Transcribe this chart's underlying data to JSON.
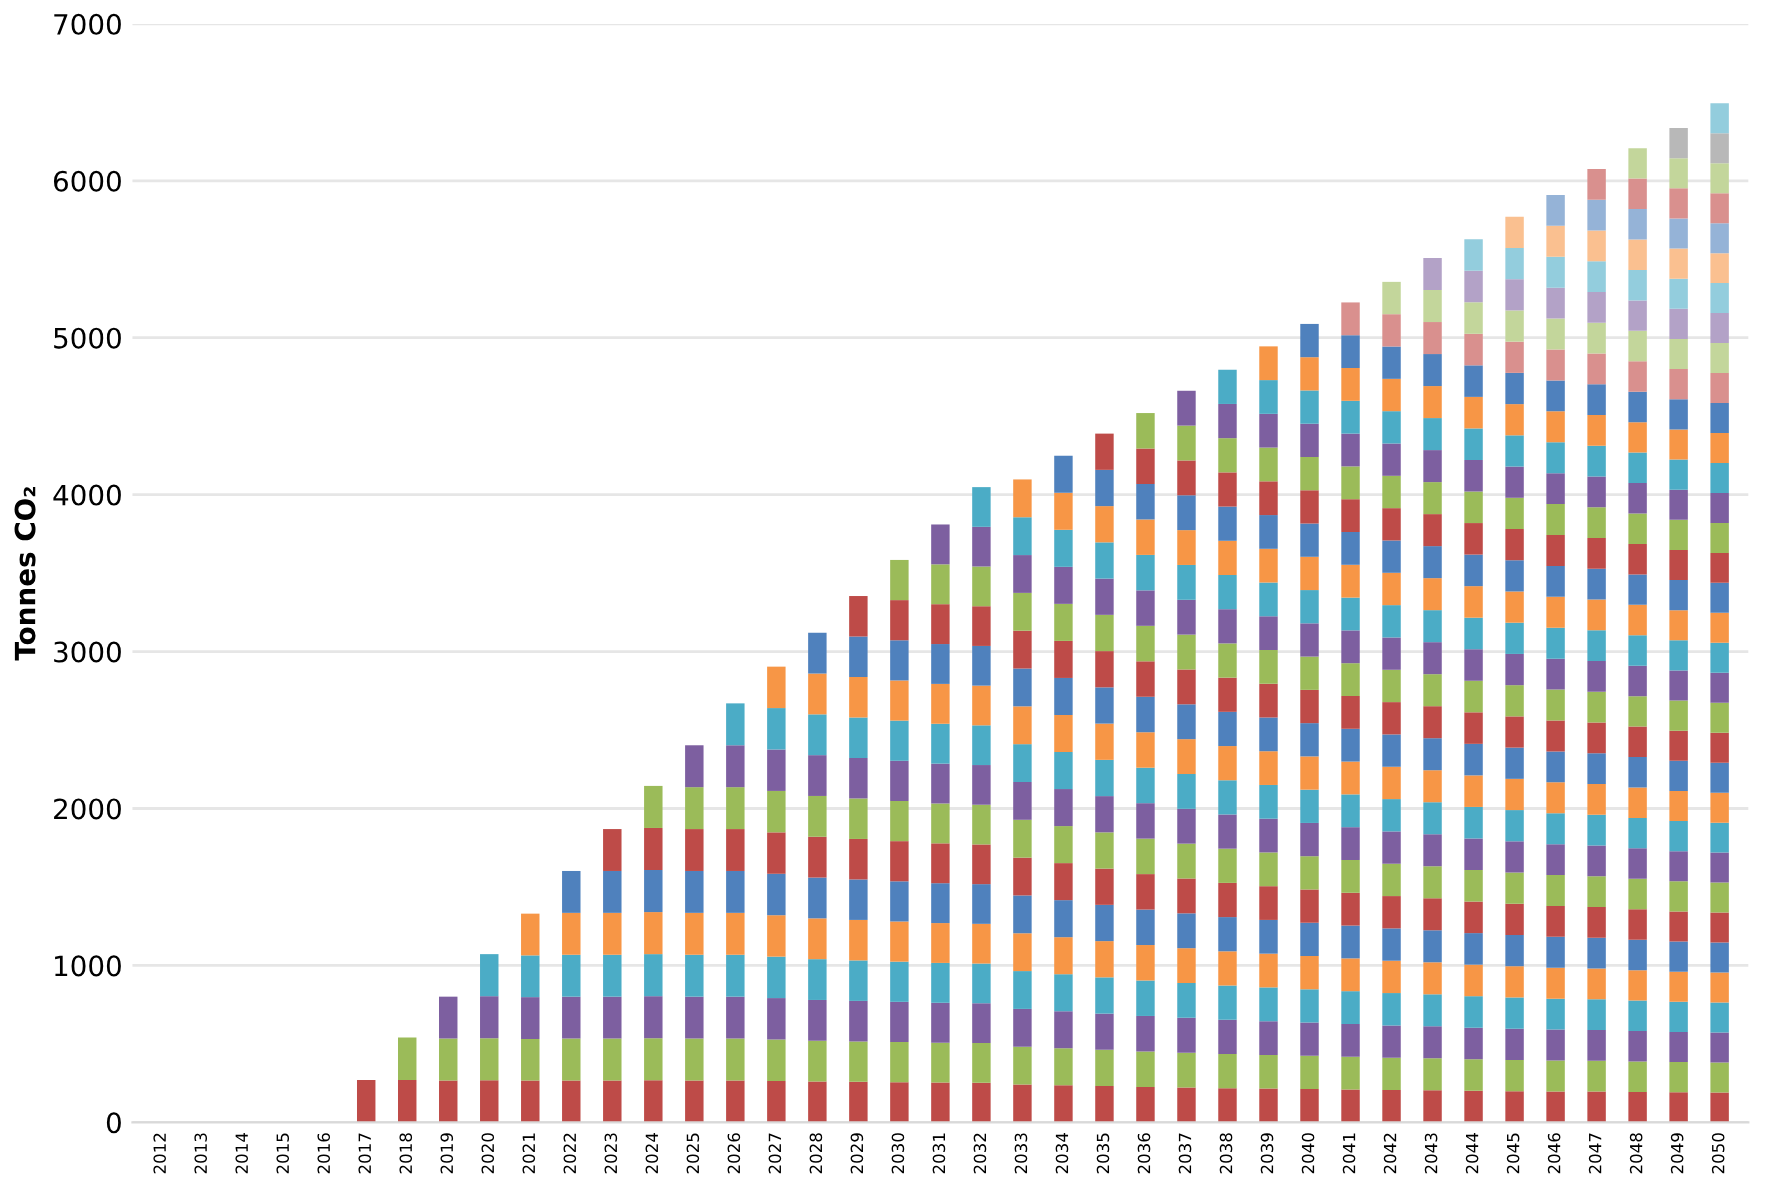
{
  "chart_data": {
    "type": "bar",
    "stacked": true,
    "ylabel": "Tonnes CO₂",
    "ylim": [
      0,
      7000
    ],
    "yticks": [
      0,
      1000,
      2000,
      3000,
      4000,
      5000,
      6000,
      7000
    ],
    "grid": "y",
    "legend": false,
    "categories": [
      "2012",
      "2013",
      "2014",
      "2015",
      "2016",
      "2017",
      "2018",
      "2019",
      "2020",
      "2021",
      "2022",
      "2023",
      "2024",
      "2025",
      "2026",
      "2027",
      "2028",
      "2029",
      "2030",
      "2031",
      "2032",
      "2033",
      "2034",
      "2035",
      "2036",
      "2037",
      "2038",
      "2039",
      "2040",
      "2041",
      "2042",
      "2043",
      "2044",
      "2045",
      "2046",
      "2047",
      "2048",
      "2049",
      "2050"
    ],
    "series": [
      {
        "color": "#be4b48",
        "values": [
          null,
          null,
          null,
          null,
          null,
          270,
          270,
          267,
          268,
          266,
          267,
          267,
          268,
          267,
          267,
          264,
          260,
          258,
          256,
          254,
          253,
          241,
          236,
          231,
          226,
          222,
          218,
          215,
          212,
          209,
          206,
          204,
          201,
          199,
          197,
          196,
          194,
          192,
          191
        ]
      },
      {
        "color": "#9bbb59",
        "values": [
          null,
          null,
          null,
          null,
          null,
          null,
          270,
          267,
          268,
          266,
          267,
          267,
          268,
          267,
          267,
          264,
          260,
          258,
          256,
          254,
          253,
          241,
          236,
          231,
          226,
          222,
          218,
          215,
          212,
          209,
          206,
          204,
          201,
          199,
          197,
          196,
          194,
          192,
          191
        ]
      },
      {
        "color": "#7d5fa0",
        "values": [
          null,
          null,
          null,
          null,
          null,
          null,
          null,
          267,
          268,
          266,
          267,
          267,
          268,
          267,
          267,
          264,
          260,
          258,
          256,
          254,
          253,
          241,
          236,
          231,
          226,
          222,
          218,
          215,
          212,
          209,
          206,
          204,
          201,
          199,
          197,
          196,
          194,
          192,
          191
        ]
      },
      {
        "color": "#4bacc6",
        "values": [
          null,
          null,
          null,
          null,
          null,
          null,
          null,
          null,
          268,
          266,
          267,
          267,
          268,
          267,
          267,
          264,
          260,
          258,
          256,
          254,
          253,
          241,
          236,
          231,
          226,
          222,
          218,
          215,
          212,
          209,
          206,
          204,
          201,
          199,
          197,
          196,
          194,
          192,
          191
        ]
      },
      {
        "color": "#f79646",
        "values": [
          null,
          null,
          null,
          null,
          null,
          null,
          null,
          null,
          null,
          266,
          267,
          267,
          268,
          267,
          267,
          264,
          260,
          258,
          256,
          254,
          253,
          241,
          236,
          231,
          226,
          222,
          218,
          215,
          212,
          209,
          206,
          204,
          201,
          199,
          197,
          196,
          194,
          192,
          191
        ]
      },
      {
        "color": "#4f81bd",
        "values": [
          null,
          null,
          null,
          null,
          null,
          null,
          null,
          null,
          null,
          null,
          267,
          267,
          268,
          267,
          267,
          264,
          260,
          258,
          256,
          254,
          253,
          241,
          236,
          231,
          226,
          222,
          218,
          215,
          212,
          209,
          206,
          204,
          201,
          199,
          197,
          196,
          194,
          192,
          191
        ]
      },
      {
        "color": "#be4b48",
        "values": [
          null,
          null,
          null,
          null,
          null,
          null,
          null,
          null,
          null,
          null,
          null,
          267,
          268,
          267,
          267,
          264,
          260,
          258,
          256,
          254,
          253,
          241,
          236,
          231,
          226,
          222,
          218,
          215,
          212,
          209,
          206,
          204,
          201,
          199,
          197,
          196,
          194,
          192,
          191
        ]
      },
      {
        "color": "#9bbb59",
        "values": [
          null,
          null,
          null,
          null,
          null,
          null,
          null,
          null,
          null,
          null,
          null,
          null,
          268,
          267,
          267,
          264,
          260,
          258,
          256,
          254,
          253,
          241,
          236,
          231,
          226,
          222,
          218,
          215,
          212,
          209,
          206,
          204,
          201,
          199,
          197,
          196,
          194,
          192,
          191
        ]
      },
      {
        "color": "#7d5fa0",
        "values": [
          null,
          null,
          null,
          null,
          null,
          null,
          null,
          null,
          null,
          null,
          null,
          null,
          null,
          267,
          267,
          264,
          260,
          258,
          256,
          254,
          253,
          241,
          236,
          231,
          226,
          222,
          218,
          215,
          212,
          209,
          206,
          204,
          201,
          199,
          197,
          196,
          194,
          192,
          191
        ]
      },
      {
        "color": "#4bacc6",
        "values": [
          null,
          null,
          null,
          null,
          null,
          null,
          null,
          null,
          null,
          null,
          null,
          null,
          null,
          null,
          267,
          264,
          260,
          258,
          256,
          254,
          253,
          241,
          236,
          231,
          226,
          222,
          218,
          215,
          212,
          209,
          206,
          204,
          201,
          199,
          197,
          196,
          194,
          192,
          191
        ]
      },
      {
        "color": "#f79646",
        "values": [
          null,
          null,
          null,
          null,
          null,
          null,
          null,
          null,
          null,
          null,
          null,
          null,
          null,
          null,
          null,
          264,
          260,
          258,
          256,
          254,
          253,
          241,
          236,
          231,
          226,
          222,
          218,
          215,
          212,
          209,
          206,
          204,
          201,
          199,
          197,
          196,
          194,
          192,
          191
        ]
      },
      {
        "color": "#4f81bd",
        "values": [
          null,
          null,
          null,
          null,
          null,
          null,
          null,
          null,
          null,
          null,
          null,
          null,
          null,
          null,
          null,
          null,
          260,
          258,
          256,
          254,
          253,
          241,
          236,
          231,
          226,
          222,
          218,
          215,
          212,
          209,
          206,
          204,
          201,
          199,
          197,
          196,
          194,
          192,
          191
        ]
      },
      {
        "color": "#be4b48",
        "values": [
          null,
          null,
          null,
          null,
          null,
          null,
          null,
          null,
          null,
          null,
          null,
          null,
          null,
          null,
          null,
          null,
          null,
          258,
          256,
          254,
          253,
          241,
          236,
          231,
          226,
          222,
          218,
          215,
          212,
          209,
          206,
          204,
          201,
          199,
          197,
          196,
          194,
          192,
          191
        ]
      },
      {
        "color": "#9bbb59",
        "values": [
          null,
          null,
          null,
          null,
          null,
          null,
          null,
          null,
          null,
          null,
          null,
          null,
          null,
          null,
          null,
          null,
          null,
          null,
          256,
          254,
          253,
          241,
          236,
          231,
          226,
          222,
          218,
          215,
          212,
          209,
          206,
          204,
          201,
          199,
          197,
          196,
          194,
          192,
          191
        ]
      },
      {
        "color": "#7d5fa0",
        "values": [
          null,
          null,
          null,
          null,
          null,
          null,
          null,
          null,
          null,
          null,
          null,
          null,
          null,
          null,
          null,
          null,
          null,
          null,
          null,
          254,
          253,
          241,
          236,
          231,
          226,
          222,
          218,
          215,
          212,
          209,
          206,
          204,
          201,
          199,
          197,
          196,
          194,
          192,
          191
        ]
      },
      {
        "color": "#4bacc6",
        "values": [
          null,
          null,
          null,
          null,
          null,
          null,
          null,
          null,
          null,
          null,
          null,
          null,
          null,
          null,
          null,
          null,
          null,
          null,
          null,
          null,
          253,
          241,
          236,
          231,
          226,
          222,
          218,
          215,
          212,
          209,
          206,
          204,
          201,
          199,
          197,
          196,
          194,
          192,
          191
        ]
      },
      {
        "color": "#f79646",
        "values": [
          null,
          null,
          null,
          null,
          null,
          null,
          null,
          null,
          null,
          null,
          null,
          null,
          null,
          null,
          null,
          null,
          null,
          null,
          null,
          null,
          null,
          241,
          236,
          231,
          226,
          222,
          218,
          215,
          212,
          209,
          206,
          204,
          201,
          199,
          197,
          196,
          194,
          192,
          191
        ]
      },
      {
        "color": "#4f81bd",
        "values": [
          null,
          null,
          null,
          null,
          null,
          null,
          null,
          null,
          null,
          null,
          null,
          null,
          null,
          null,
          null,
          null,
          null,
          null,
          null,
          null,
          null,
          null,
          236,
          231,
          226,
          222,
          218,
          215,
          212,
          209,
          206,
          204,
          201,
          199,
          197,
          196,
          194,
          192,
          191
        ]
      },
      {
        "color": "#be4b48",
        "values": [
          null,
          null,
          null,
          null,
          null,
          null,
          null,
          null,
          null,
          null,
          null,
          null,
          null,
          null,
          null,
          null,
          null,
          null,
          null,
          null,
          null,
          null,
          null,
          231,
          226,
          222,
          218,
          215,
          212,
          209,
          206,
          204,
          201,
          199,
          197,
          196,
          194,
          192,
          191
        ]
      },
      {
        "color": "#9bbb59",
        "values": [
          null,
          null,
          null,
          null,
          null,
          null,
          null,
          null,
          null,
          null,
          null,
          null,
          null,
          null,
          null,
          null,
          null,
          null,
          null,
          null,
          null,
          null,
          null,
          null,
          226,
          222,
          218,
          215,
          212,
          209,
          206,
          204,
          201,
          199,
          197,
          196,
          194,
          192,
          191
        ]
      },
      {
        "color": "#7d5fa0",
        "values": [
          null,
          null,
          null,
          null,
          null,
          null,
          null,
          null,
          null,
          null,
          null,
          null,
          null,
          null,
          null,
          null,
          null,
          null,
          null,
          null,
          null,
          null,
          null,
          null,
          null,
          222,
          218,
          215,
          212,
          209,
          206,
          204,
          201,
          199,
          197,
          196,
          194,
          192,
          191
        ]
      },
      {
        "color": "#4bacc6",
        "values": [
          null,
          null,
          null,
          null,
          null,
          null,
          null,
          null,
          null,
          null,
          null,
          null,
          null,
          null,
          null,
          null,
          null,
          null,
          null,
          null,
          null,
          null,
          null,
          null,
          null,
          null,
          218,
          215,
          212,
          209,
          206,
          204,
          201,
          199,
          197,
          196,
          194,
          192,
          191
        ]
      },
      {
        "color": "#f79646",
        "values": [
          null,
          null,
          null,
          null,
          null,
          null,
          null,
          null,
          null,
          null,
          null,
          null,
          null,
          null,
          null,
          null,
          null,
          null,
          null,
          null,
          null,
          null,
          null,
          null,
          null,
          null,
          null,
          215,
          212,
          209,
          206,
          204,
          201,
          199,
          197,
          196,
          194,
          192,
          191
        ]
      },
      {
        "color": "#4f81bd",
        "values": [
          null,
          null,
          null,
          null,
          null,
          null,
          null,
          null,
          null,
          null,
          null,
          null,
          null,
          null,
          null,
          null,
          null,
          null,
          null,
          null,
          null,
          null,
          null,
          null,
          null,
          null,
          null,
          null,
          212,
          209,
          206,
          204,
          201,
          199,
          197,
          196,
          194,
          192,
          191
        ]
      },
      {
        "color": "#d9908e",
        "values": [
          null,
          null,
          null,
          null,
          null,
          null,
          null,
          null,
          null,
          null,
          null,
          null,
          null,
          null,
          null,
          null,
          null,
          null,
          null,
          null,
          null,
          null,
          null,
          null,
          null,
          null,
          null,
          null,
          null,
          209,
          206,
          204,
          201,
          199,
          197,
          196,
          194,
          192,
          191
        ]
      },
      {
        "color": "#c3d69b",
        "values": [
          null,
          null,
          null,
          null,
          null,
          null,
          null,
          null,
          null,
          null,
          null,
          null,
          null,
          null,
          null,
          null,
          null,
          null,
          null,
          null,
          null,
          null,
          null,
          null,
          null,
          null,
          null,
          null,
          null,
          null,
          206,
          204,
          201,
          199,
          197,
          196,
          194,
          192,
          191
        ]
      },
      {
        "color": "#b3a2c7",
        "values": [
          null,
          null,
          null,
          null,
          null,
          null,
          null,
          null,
          null,
          null,
          null,
          null,
          null,
          null,
          null,
          null,
          null,
          null,
          null,
          null,
          null,
          null,
          null,
          null,
          null,
          null,
          null,
          null,
          null,
          null,
          null,
          204,
          201,
          199,
          197,
          196,
          194,
          192,
          191
        ]
      },
      {
        "color": "#93cddd",
        "values": [
          null,
          null,
          null,
          null,
          null,
          null,
          null,
          null,
          null,
          null,
          null,
          null,
          null,
          null,
          null,
          null,
          null,
          null,
          null,
          null,
          null,
          null,
          null,
          null,
          null,
          null,
          null,
          null,
          null,
          null,
          null,
          null,
          201,
          199,
          197,
          196,
          194,
          192,
          191
        ]
      },
      {
        "color": "#fac090",
        "values": [
          null,
          null,
          null,
          null,
          null,
          null,
          null,
          null,
          null,
          null,
          null,
          null,
          null,
          null,
          null,
          null,
          null,
          null,
          null,
          null,
          null,
          null,
          null,
          null,
          null,
          null,
          null,
          null,
          null,
          null,
          null,
          null,
          null,
          199,
          197,
          196,
          194,
          192,
          191
        ]
      },
      {
        "color": "#95b3d7",
        "values": [
          null,
          null,
          null,
          null,
          null,
          null,
          null,
          null,
          null,
          null,
          null,
          null,
          null,
          null,
          null,
          null,
          null,
          null,
          null,
          null,
          null,
          null,
          null,
          null,
          null,
          null,
          null,
          null,
          null,
          null,
          null,
          null,
          null,
          null,
          197,
          196,
          194,
          192,
          191
        ]
      },
      {
        "color": "#d9908e",
        "values": [
          null,
          null,
          null,
          null,
          null,
          null,
          null,
          null,
          null,
          null,
          null,
          null,
          null,
          null,
          null,
          null,
          null,
          null,
          null,
          null,
          null,
          null,
          null,
          null,
          null,
          null,
          null,
          null,
          null,
          null,
          null,
          null,
          null,
          null,
          null,
          196,
          194,
          192,
          191
        ]
      },
      {
        "color": "#c3d69b",
        "values": [
          null,
          null,
          null,
          null,
          null,
          null,
          null,
          null,
          null,
          null,
          null,
          null,
          null,
          null,
          null,
          null,
          null,
          null,
          null,
          null,
          null,
          null,
          null,
          null,
          null,
          null,
          null,
          null,
          null,
          null,
          null,
          null,
          null,
          null,
          null,
          null,
          194,
          192,
          191
        ]
      },
      {
        "color": "#b8b8b8",
        "values": [
          null,
          null,
          null,
          null,
          null,
          null,
          null,
          null,
          null,
          null,
          null,
          null,
          null,
          null,
          null,
          null,
          null,
          null,
          null,
          null,
          null,
          null,
          null,
          null,
          null,
          null,
          null,
          null,
          null,
          null,
          null,
          null,
          null,
          null,
          null,
          null,
          null,
          192,
          191
        ]
      },
      {
        "color": "#93cddd",
        "values": [
          null,
          null,
          null,
          null,
          null,
          null,
          null,
          null,
          null,
          null,
          null,
          null,
          null,
          null,
          null,
          null,
          null,
          null,
          null,
          null,
          null,
          null,
          null,
          null,
          null,
          null,
          null,
          null,
          null,
          null,
          null,
          null,
          null,
          null,
          null,
          null,
          null,
          null,
          191
        ]
      }
    ]
  }
}
